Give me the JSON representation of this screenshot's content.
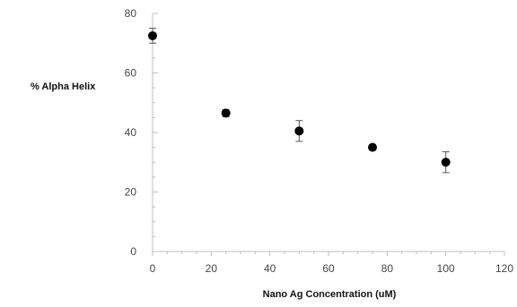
{
  "chart_data": {
    "type": "scatter",
    "title": "",
    "xlabel": "Nano Ag Concentration (uM)",
    "ylabel": "% Alpha Helix",
    "xlim": [
      0,
      120
    ],
    "ylim": [
      0,
      80
    ],
    "x_ticks": [
      0,
      20,
      40,
      60,
      80,
      100,
      120
    ],
    "y_ticks": [
      0,
      20,
      40,
      60,
      80
    ],
    "grid": false,
    "legend": "none",
    "marker_color": "#000000",
    "axis_color": "#bfbfbf",
    "series": [
      {
        "points": [
          {
            "x": 0,
            "y": 72.5,
            "err": 2.5
          },
          {
            "x": 25,
            "y": 46.5,
            "err": 1.2
          },
          {
            "x": 50,
            "y": 40.5,
            "err": 3.5
          },
          {
            "x": 75,
            "y": 35.0,
            "err": 0.5
          },
          {
            "x": 100,
            "y": 30.0,
            "err": 3.5
          }
        ]
      }
    ]
  }
}
